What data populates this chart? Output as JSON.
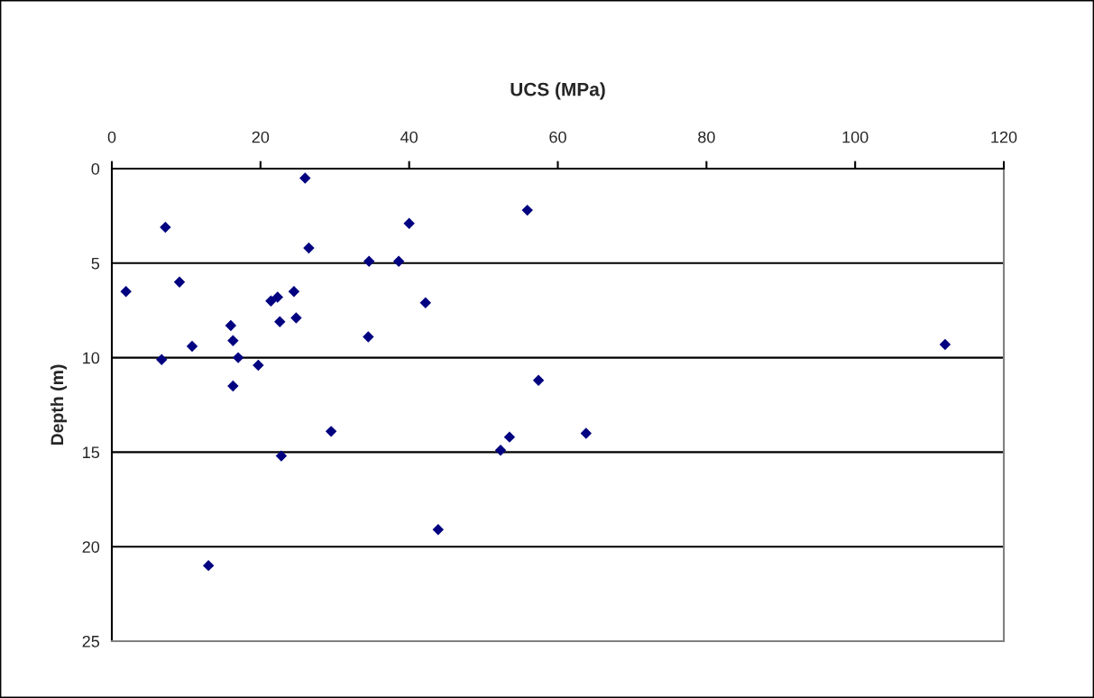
{
  "chart_data": {
    "type": "scatter",
    "xlabel": "UCS (MPa)",
    "ylabel": "Depth (m)",
    "x": [
      26.0,
      7.2,
      40.0,
      55.9,
      26.5,
      34.6,
      38.6,
      1.9,
      9.1,
      21.4,
      22.3,
      24.5,
      42.2,
      16.0,
      22.6,
      24.8,
      16.3,
      34.5,
      10.8,
      112.1,
      6.7,
      17.0,
      19.7,
      16.3,
      57.4,
      29.5,
      53.5,
      63.8,
      52.3,
      22.8,
      43.9,
      13.0
    ],
    "series": [
      {
        "color": "#000080",
        "values": [
          0.5,
          3.1,
          2.9,
          2.2,
          4.2,
          4.9,
          4.9,
          6.5,
          6.0,
          7.0,
          6.8,
          6.5,
          7.1,
          8.3,
          8.1,
          7.9,
          9.1,
          8.9,
          9.4,
          9.3,
          10.1,
          10.0,
          10.4,
          11.5,
          11.2,
          13.9,
          14.2,
          14.0,
          14.9,
          15.2,
          19.1,
          21.0
        ]
      }
    ],
    "marker": "diamond",
    "xlim": [
      0,
      120
    ],
    "xticks": [
      0,
      20,
      40,
      60,
      80,
      100,
      120
    ],
    "ylim": [
      25,
      0
    ],
    "yticks": [
      0,
      5,
      10,
      15,
      20,
      25
    ],
    "grid": "y",
    "legend": false
  }
}
